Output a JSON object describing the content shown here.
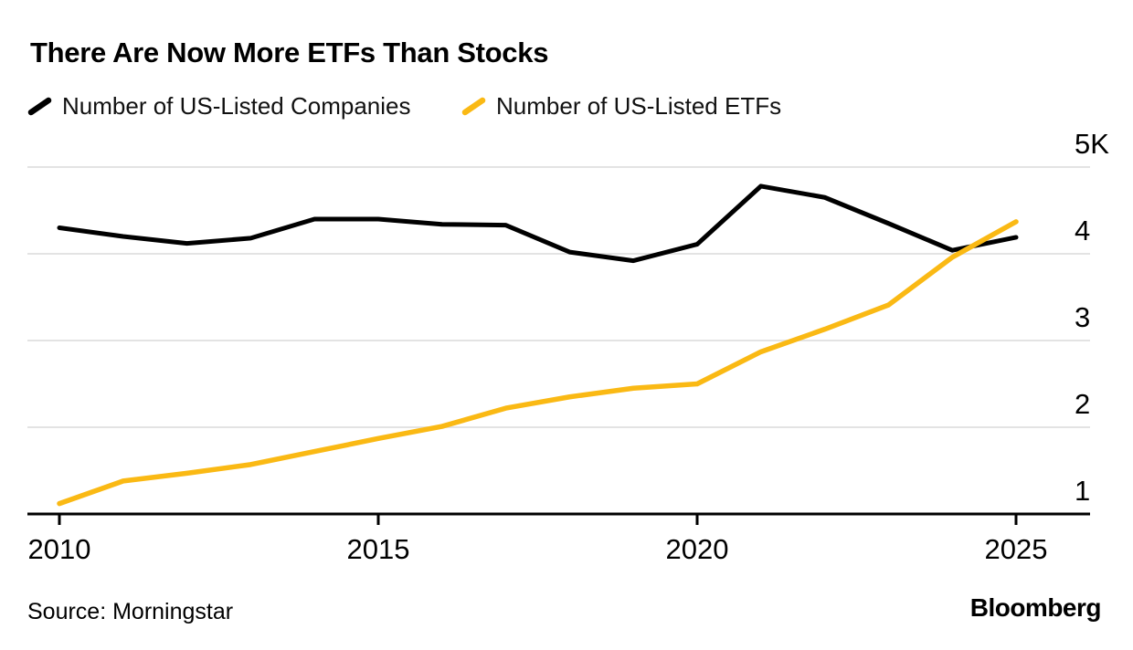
{
  "title": "There Are Now More ETFs Than Stocks",
  "legend": [
    {
      "label": "Number of US-Listed Companies",
      "color": "#000000"
    },
    {
      "label": "Number of US-Listed ETFs",
      "color": "#FAB914"
    }
  ],
  "footer": {
    "source": "Source: Morningstar",
    "brand": "Bloomberg"
  },
  "colors": {
    "grid": "#E3E3E3",
    "axis": "#000000",
    "series_companies": "#000000",
    "series_etfs": "#FAB914",
    "text": "#000000"
  },
  "chart_data": {
    "type": "line",
    "title": "There Are Now More ETFs Than Stocks",
    "xlabel": "",
    "ylabel": "",
    "values_unit": "thousands (K)",
    "grid": "horizontal",
    "legend_position": "top",
    "xlim": [
      2010,
      2025
    ],
    "ylim": [
      1,
      5
    ],
    "axis_baseline_value": 1,
    "x": [
      2010,
      2011,
      2012,
      2013,
      2014,
      2015,
      2016,
      2017,
      2018,
      2019,
      2020,
      2021,
      2022,
      2023,
      2024,
      2025
    ],
    "series": [
      {
        "name": "Number of US-Listed Companies",
        "color": "#000000",
        "values": [
          4.3,
          4.2,
          4.12,
          4.18,
          4.4,
          4.4,
          4.34,
          4.33,
          4.02,
          3.92,
          4.11,
          4.78,
          4.65,
          4.35,
          4.04,
          4.19
        ]
      },
      {
        "name": "Number of US-Listed ETFs",
        "color": "#FAB914",
        "values": [
          1.12,
          1.38,
          1.47,
          1.57,
          1.72,
          1.87,
          2.01,
          2.22,
          2.35,
          2.45,
          2.5,
          2.87,
          3.13,
          3.41,
          3.96,
          4.37
        ]
      }
    ],
    "xticks": [
      {
        "value": 2010,
        "label": "2010"
      },
      {
        "value": 2015,
        "label": "2015"
      },
      {
        "value": 2020,
        "label": "2020"
      },
      {
        "value": 2025,
        "label": "2025"
      }
    ],
    "yticks": [
      {
        "value": 5,
        "label": "5K"
      },
      {
        "value": 4,
        "label": "4"
      },
      {
        "value": 3,
        "label": "3"
      },
      {
        "value": 2,
        "label": "2"
      },
      {
        "value": 1,
        "label": "1"
      }
    ]
  }
}
